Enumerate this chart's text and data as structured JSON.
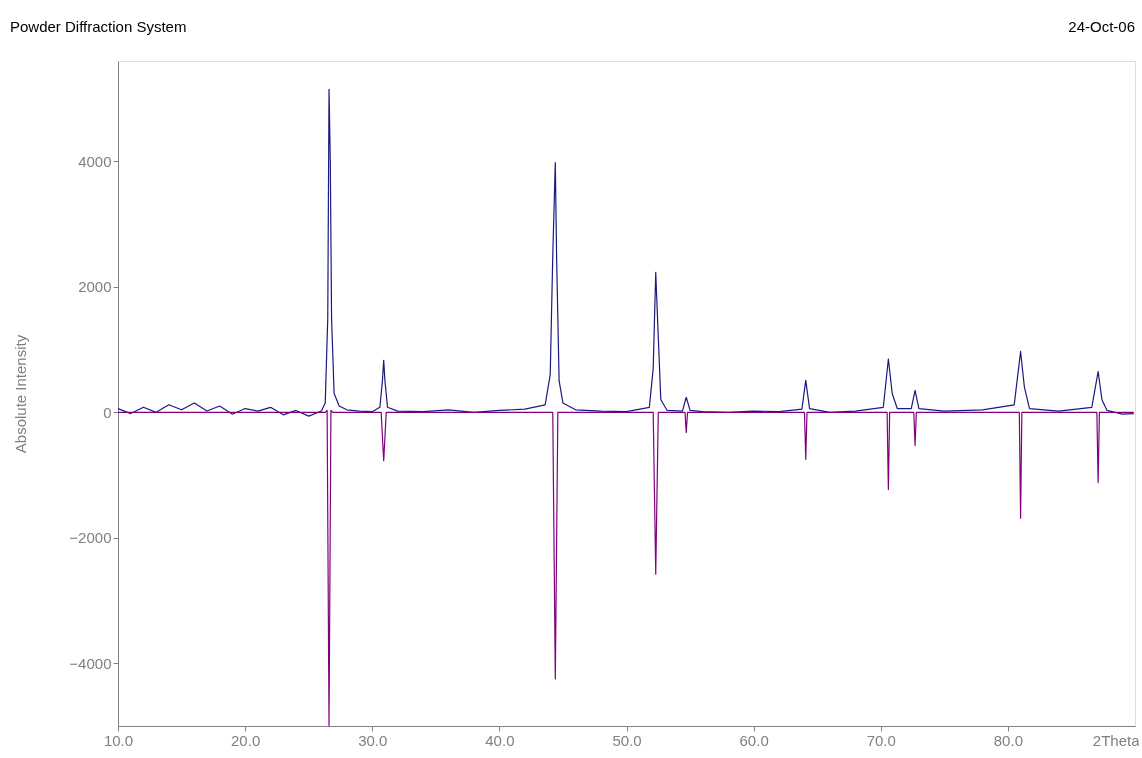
{
  "chart_data": {
    "type": "line",
    "title": "Powder Diffraction System",
    "ylabel": "Absolute Intensity",
    "annotations": [
      "24-Oct-06"
    ],
    "xlabel": "2Theta",
    "xlim": [
      10,
      90
    ],
    "xticks": [
      {
        "value": 10,
        "label": "10.0"
      },
      {
        "value": 20,
        "label": "20.0"
      },
      {
        "value": 30,
        "label": "30.0"
      },
      {
        "value": 40,
        "label": "40.0"
      },
      {
        "value": 50,
        "label": "50.0"
      },
      {
        "value": 60,
        "label": "60.0"
      },
      {
        "value": 70,
        "label": "70.0"
      },
      {
        "value": 80,
        "label": "80.0"
      }
    ],
    "ylim": [
      -5000,
      5600
    ],
    "yticks": [
      -4000,
      -2000,
      0,
      2000,
      4000
    ],
    "grid": false,
    "marker": "none",
    "line_style": "solid",
    "series": [
      {
        "color": "#1a1a80",
        "x": [
          10,
          11,
          12,
          13,
          14,
          15,
          16,
          17,
          18,
          19,
          20,
          21,
          22,
          23,
          24,
          25,
          26,
          26.3,
          26.5,
          26.6,
          26.7,
          26.8,
          27.0,
          27.4,
          28,
          29,
          30,
          30.6,
          30.8,
          30.9,
          31.0,
          31.2,
          32,
          34,
          36,
          38,
          40,
          42,
          43.6,
          44.0,
          44.2,
          44.4,
          44.5,
          44.7,
          45,
          46,
          48,
          50,
          51.8,
          52.1,
          52.3,
          52.5,
          52.7,
          53.2,
          54.4,
          54.7,
          55.0,
          56,
          58,
          60,
          62,
          63.8,
          64.1,
          64.4,
          66,
          68,
          70.2,
          70.6,
          70.9,
          71.3,
          72.4,
          72.7,
          73.0,
          75,
          78,
          80.5,
          81.0,
          81.3,
          81.7,
          84,
          86.6,
          87.1,
          87.4,
          87.8,
          89,
          89.9
        ],
        "values": [
          60,
          -20,
          80,
          0,
          120,
          40,
          150,
          20,
          100,
          -30,
          60,
          20,
          80,
          -40,
          30,
          -60,
          20,
          150,
          1500,
          5150,
          4000,
          1500,
          300,
          100,
          40,
          20,
          10,
          80,
          500,
          830,
          500,
          80,
          20,
          10,
          40,
          0,
          30,
          50,
          120,
          600,
          2500,
          3980,
          2500,
          500,
          150,
          40,
          20,
          10,
          80,
          700,
          2230,
          1200,
          200,
          30,
          20,
          240,
          30,
          10,
          0,
          20,
          10,
          50,
          510,
          60,
          0,
          20,
          80,
          850,
          300,
          60,
          60,
          350,
          60,
          20,
          40,
          120,
          970,
          400,
          60,
          20,
          80,
          650,
          200,
          30,
          -30,
          -20
        ]
      },
      {
        "color": "#800080",
        "x": [
          10,
          26.3,
          26.45,
          26.6,
          26.75,
          26.9,
          30.7,
          30.9,
          31.1,
          44.2,
          44.4,
          44.6,
          52.1,
          52.3,
          52.5,
          54.6,
          54.7,
          54.8,
          64.0,
          64.1,
          64.2,
          70.5,
          70.6,
          70.7,
          72.6,
          72.7,
          72.8,
          80.9,
          81.0,
          81.1,
          87.0,
          87.1,
          87.2,
          89.9
        ],
        "values": [
          0,
          0,
          30,
          -5000,
          30,
          0,
          0,
          -770,
          0,
          0,
          -4250,
          0,
          0,
          -2580,
          0,
          0,
          -320,
          0,
          0,
          -750,
          0,
          0,
          -1230,
          0,
          0,
          -530,
          0,
          0,
          -1690,
          0,
          0,
          -1120,
          0,
          0
        ]
      }
    ]
  }
}
